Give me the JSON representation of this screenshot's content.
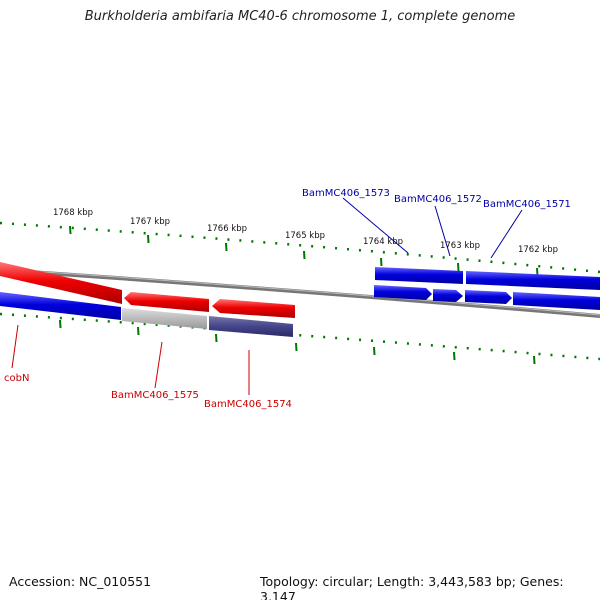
{
  "title": "Burkholderia ambifaria MC40-6 chromosome 1, complete genome",
  "footer": {
    "accession": "Accession: NC_010551",
    "topology": "Topology: circular; Length: 3,443,583 bp; Genes: 3,147"
  },
  "colors": {
    "forward_gene": "#0000dd",
    "reverse_gene": "#ee0000",
    "forward_label": "#0000aa",
    "reverse_label": "#cc0000",
    "tick": "#007700",
    "backbone": "#777777",
    "pseudo_gene": "#bbbbbb",
    "rna_gene": "#44448a"
  },
  "ticks": [
    {
      "label": "1768 kbp"
    },
    {
      "label": "1767 kbp"
    },
    {
      "label": "1766 kbp"
    },
    {
      "label": "1765 kbp"
    },
    {
      "label": "1764 kbp"
    },
    {
      "label": "1763 kbp"
    },
    {
      "label": "1762 kbp"
    }
  ],
  "gene_labels": [
    {
      "name": "BamMC406_1573",
      "strand": "forward"
    },
    {
      "name": "BamMC406_1572",
      "strand": "forward"
    },
    {
      "name": "BamMC406_1571",
      "strand": "forward"
    },
    {
      "name": "cobN",
      "strand": "reverse"
    },
    {
      "name": "BamMC406_1575",
      "strand": "reverse"
    },
    {
      "name": "BamMC406_1574",
      "strand": "reverse"
    }
  ]
}
